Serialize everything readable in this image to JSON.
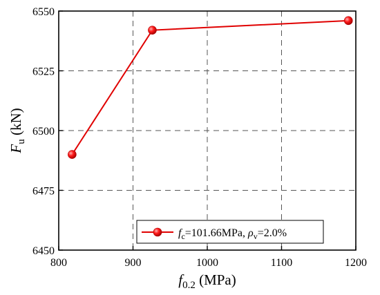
{
  "chart_data": {
    "type": "line",
    "x": [
      818,
      926,
      1190
    ],
    "y": [
      6490,
      6542,
      6546
    ],
    "xlim": [
      800,
      1200
    ],
    "ylim": [
      6450,
      6550
    ],
    "xticks": [
      "800",
      "900",
      "1000",
      "1100",
      "1200"
    ],
    "yticks": [
      "6450",
      "6475",
      "6500",
      "6525",
      "6550"
    ],
    "xlabel": {
      "main": "f",
      "sub": "0.2",
      "unit": " (MPa)"
    },
    "ylabel": {
      "main": "F",
      "sub": "u",
      "unit": " (kN)"
    },
    "grid": true,
    "legend_position": "bottom-right",
    "series": [
      {
        "color": "#e00000",
        "legend": {
          "f_main": "f",
          "f_sub": "c",
          "f_value": "=101.66MPa, ",
          "rho_main": "ρ",
          "rho_sub": "v",
          "rho_value": "=2.0%"
        }
      }
    ]
  }
}
